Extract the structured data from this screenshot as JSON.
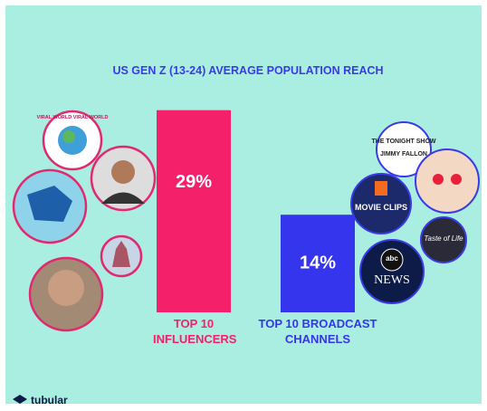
{
  "chart_data": {
    "type": "bar",
    "title": "US GEN Z (13-24) AVERAGE POPULATION REACH",
    "categories": [
      "TOP 10 INFLUENCERS",
      "TOP 10 BROADCAST CHANNELS"
    ],
    "values": [
      29,
      14
    ],
    "value_labels": [
      "29%",
      "14%"
    ],
    "colors": [
      "#f5206a",
      "#3535ee"
    ]
  },
  "logos": [
    "VIRAL WORLD VIRAL WORLD",
    "THE TONIGHT SHOW",
    "JIMMY FALLON",
    "MOVIE CLIPS",
    "abc",
    "NEWS",
    "Taste of Life"
  ],
  "brand": "tubular"
}
